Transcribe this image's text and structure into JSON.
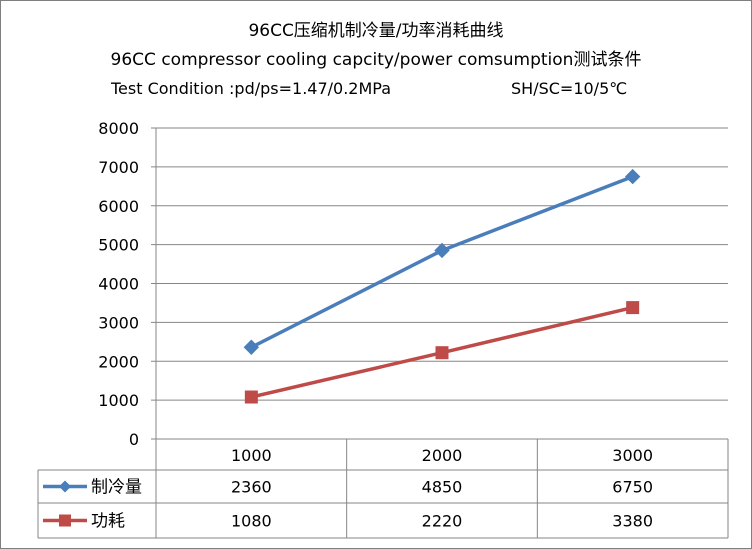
{
  "chart_data": {
    "type": "line",
    "title": "96CC压缩机制冷量/功率消耗曲线",
    "subtitle": "96CC compressor cooling capcity/power comsumption测试条件",
    "condition": "Test Condition :pd/ps=1.47/0.2MPa",
    "condition2": "SH/SC=10/5℃",
    "categories": [
      "1000",
      "2000",
      "3000"
    ],
    "series": [
      {
        "name": "制冷量",
        "values": [
          2360,
          4850,
          6750
        ],
        "color": "#4a7ebb",
        "marker": "diamond"
      },
      {
        "name": "功耗",
        "values": [
          1080,
          2220,
          3380
        ],
        "color": "#be4b48",
        "marker": "square"
      }
    ],
    "ylim": [
      0,
      8000
    ],
    "yticks": [
      "0",
      "1000",
      "2000",
      "3000",
      "4000",
      "5000",
      "6000",
      "7000",
      "8000"
    ],
    "grid": true,
    "legend": "data-table"
  }
}
